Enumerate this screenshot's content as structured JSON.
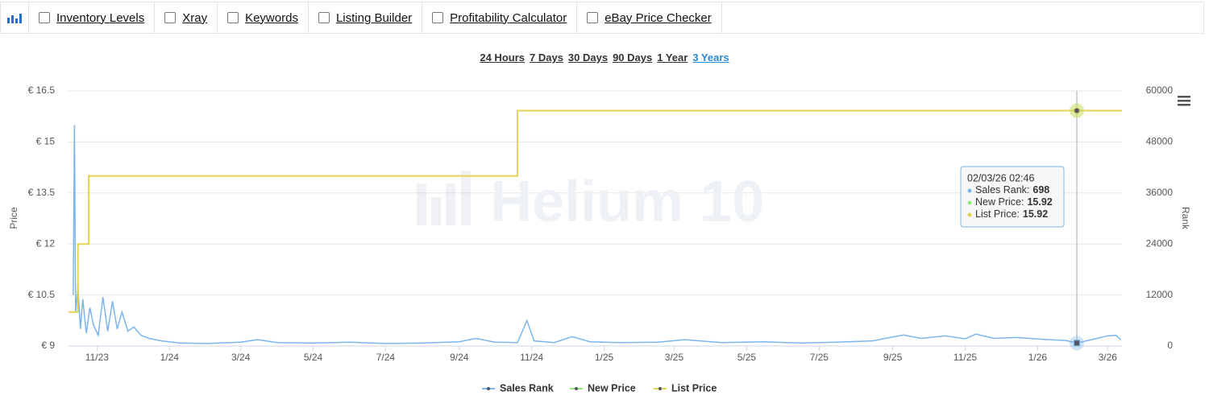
{
  "nav": {
    "items": [
      "Inventory Levels",
      "Xray",
      "Keywords",
      "Listing Builder",
      "Profitability Calculator",
      "eBay Price Checker"
    ]
  },
  "ranges": {
    "items": [
      "24 Hours",
      "7 Days",
      "30 Days",
      "90 Days",
      "1 Year",
      "3 Years"
    ],
    "active": 5
  },
  "watermark": "Helium 10",
  "tooltip": {
    "title": "02/03/26 02:46",
    "rows": [
      {
        "label": "Sales Rank:",
        "value": "698"
      },
      {
        "label": "New Price:",
        "value": "15.92"
      },
      {
        "label": "List Price:",
        "value": "15.92"
      }
    ]
  },
  "chart_data": {
    "type": "line",
    "y_label": "Price",
    "y2_label": "Rank",
    "grid": true,
    "ylim": [
      9,
      16.5
    ],
    "yticks": [
      {
        "value": 9,
        "label": "€ 9"
      },
      {
        "value": 10.5,
        "label": "€ 10.5"
      },
      {
        "value": 12,
        "label": "€ 12"
      },
      {
        "value": 13.5,
        "label": "€ 13.5"
      },
      {
        "value": 15,
        "label": "€ 15"
      },
      {
        "value": 16.5,
        "label": "€ 16.5"
      }
    ],
    "y2lim": [
      0,
      60000
    ],
    "y2ticks": [
      0,
      12000,
      24000,
      36000,
      48000,
      60000
    ],
    "xlim": [
      "2023-10-08",
      "2026-03-13"
    ],
    "xticks": [
      {
        "value": "2023-11-01",
        "label": "11/23"
      },
      {
        "value": "2024-01-01",
        "label": "1/24"
      },
      {
        "value": "2024-03-01",
        "label": "3/24"
      },
      {
        "value": "2024-05-01",
        "label": "5/24"
      },
      {
        "value": "2024-07-01",
        "label": "7/24"
      },
      {
        "value": "2024-09-01",
        "label": "9/24"
      },
      {
        "value": "2024-11-01",
        "label": "11/24"
      },
      {
        "value": "2025-01-01",
        "label": "1/25"
      },
      {
        "value": "2025-03-01",
        "label": "3/25"
      },
      {
        "value": "2025-05-01",
        "label": "5/25"
      },
      {
        "value": "2025-07-01",
        "label": "7/25"
      },
      {
        "value": "2025-09-01",
        "label": "9/25"
      },
      {
        "value": "2025-11-01",
        "label": "11/25"
      },
      {
        "value": "2026-01-01",
        "label": "1/26"
      },
      {
        "value": "2026-03-01",
        "label": "3/26"
      }
    ],
    "series": [
      {
        "name": "Sales Rank",
        "color": "#7cb5ec",
        "axis": "y2",
        "x": [
          "2023-10-12",
          "2023-10-13",
          "2023-10-14",
          "2023-10-16",
          "2023-10-18",
          "2023-10-20",
          "2023-10-23",
          "2023-10-26",
          "2023-10-29",
          "2023-11-02",
          "2023-11-06",
          "2023-11-10",
          "2023-11-14",
          "2023-11-18",
          "2023-11-22",
          "2023-11-27",
          "2023-12-02",
          "2023-12-08",
          "2023-12-15",
          "2023-12-25",
          "2024-01-10",
          "2024-02-01",
          "2024-03-01",
          "2024-03-15",
          "2024-04-01",
          "2024-05-01",
          "2024-06-01",
          "2024-07-01",
          "2024-08-01",
          "2024-09-01",
          "2024-09-15",
          "2024-10-01",
          "2024-10-20",
          "2024-10-28",
          "2024-11-03",
          "2024-11-20",
          "2024-12-05",
          "2024-12-20",
          "2025-01-15",
          "2025-02-15",
          "2025-03-10",
          "2025-04-10",
          "2025-05-15",
          "2025-06-15",
          "2025-07-15",
          "2025-08-15",
          "2025-09-10",
          "2025-09-25",
          "2025-10-15",
          "2025-11-01",
          "2025-11-10",
          "2025-11-25",
          "2025-12-15",
          "2026-01-10",
          "2026-01-25",
          "2026-02-03",
          "2026-02-20",
          "2026-03-01",
          "2026-03-08",
          "2026-03-12"
        ],
        "values": [
          12000,
          52000,
          8000,
          14000,
          4000,
          11000,
          3000,
          9000,
          5000,
          2500,
          11500,
          3500,
          10500,
          4000,
          8000,
          3500,
          4500,
          2500,
          1800,
          1200,
          700,
          600,
          900,
          1500,
          800,
          700,
          900,
          600,
          700,
          1000,
          1800,
          900,
          800,
          6000,
          1200,
          800,
          2200,
          1000,
          800,
          900,
          1500,
          800,
          1000,
          700,
          900,
          1200,
          2600,
          1800,
          2400,
          1700,
          2800,
          1800,
          2000,
          1500,
          1300,
          698,
          1800,
          2400,
          2500,
          1500
        ]
      },
      {
        "name": "New Price",
        "color": "#90ed7d",
        "x": [
          "2026-02-03"
        ],
        "values": [
          15.92
        ]
      },
      {
        "name": "List Price",
        "color": "#e4d354",
        "step": true,
        "x": [
          "2023-10-08",
          "2023-10-16",
          "2023-10-25",
          "2024-10-20",
          "2026-03-13"
        ],
        "values": [
          10,
          12,
          14,
          15.92,
          15.92
        ]
      }
    ]
  }
}
